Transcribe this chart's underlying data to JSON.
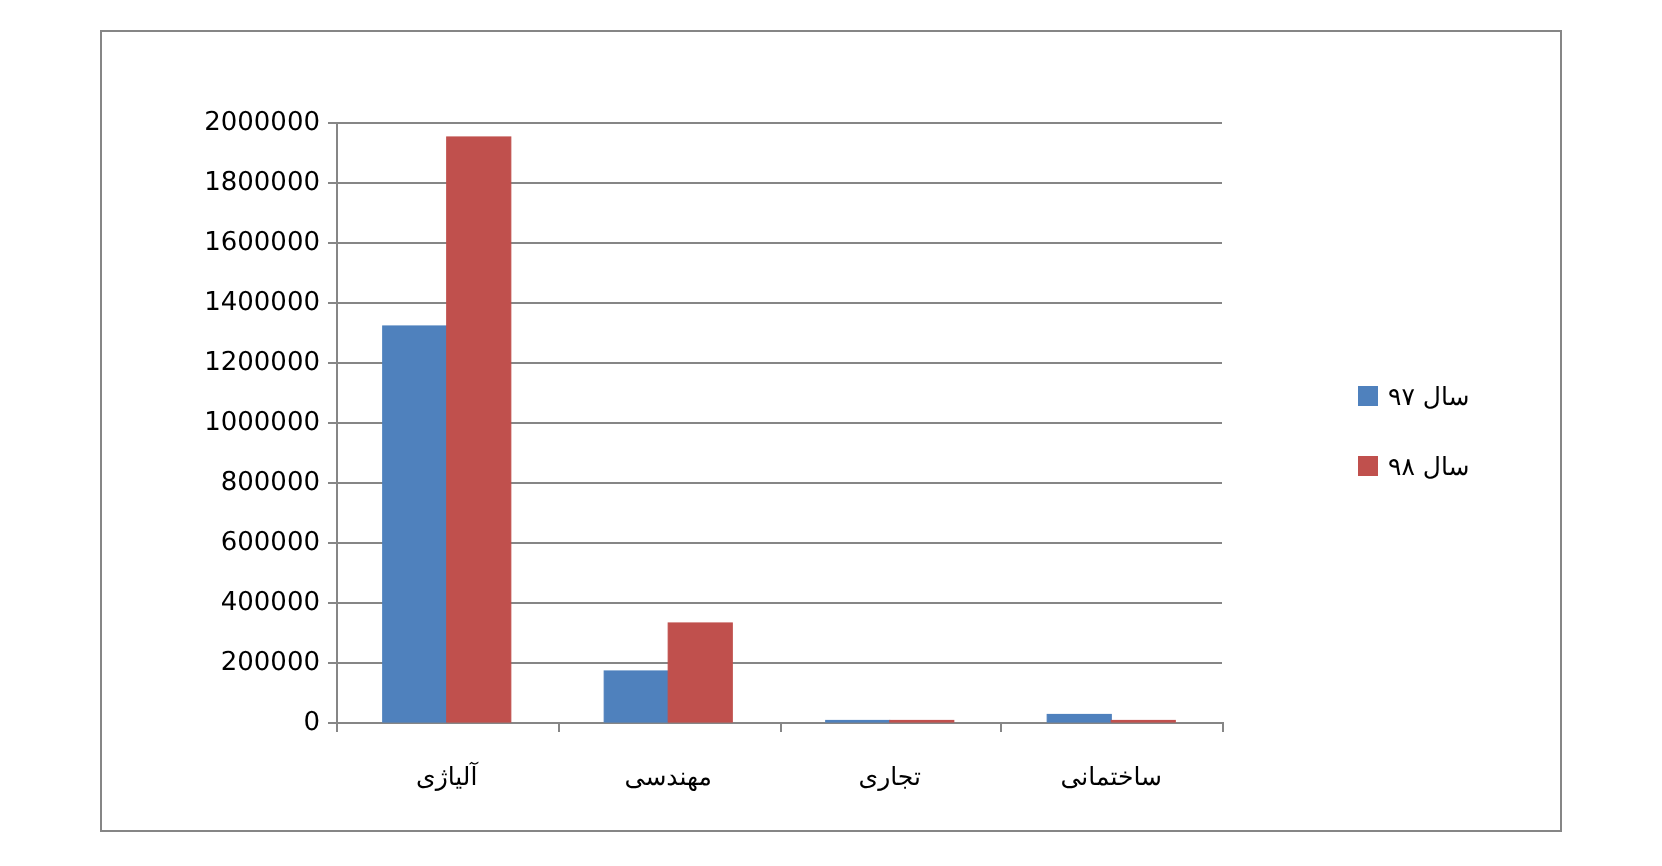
{
  "chart_data": {
    "type": "bar",
    "categories": [
      "آلیاژی",
      "مهندسی",
      "تجاری",
      "ساختمانی"
    ],
    "series": [
      {
        "name": "سال ۹۷",
        "color": "#4f81bd",
        "values": [
          1320000,
          170000,
          5000,
          25000
        ]
      },
      {
        "name": "سال ۹۸",
        "color": "#c0504d",
        "values": [
          1950000,
          330000,
          5000,
          5000
        ]
      }
    ],
    "ylim": [
      0,
      2000000
    ],
    "yticks": [
      0,
      200000,
      400000,
      600000,
      800000,
      1000000,
      1200000,
      1400000,
      1600000,
      1800000,
      2000000
    ],
    "grid": "y",
    "legend": "right"
  }
}
